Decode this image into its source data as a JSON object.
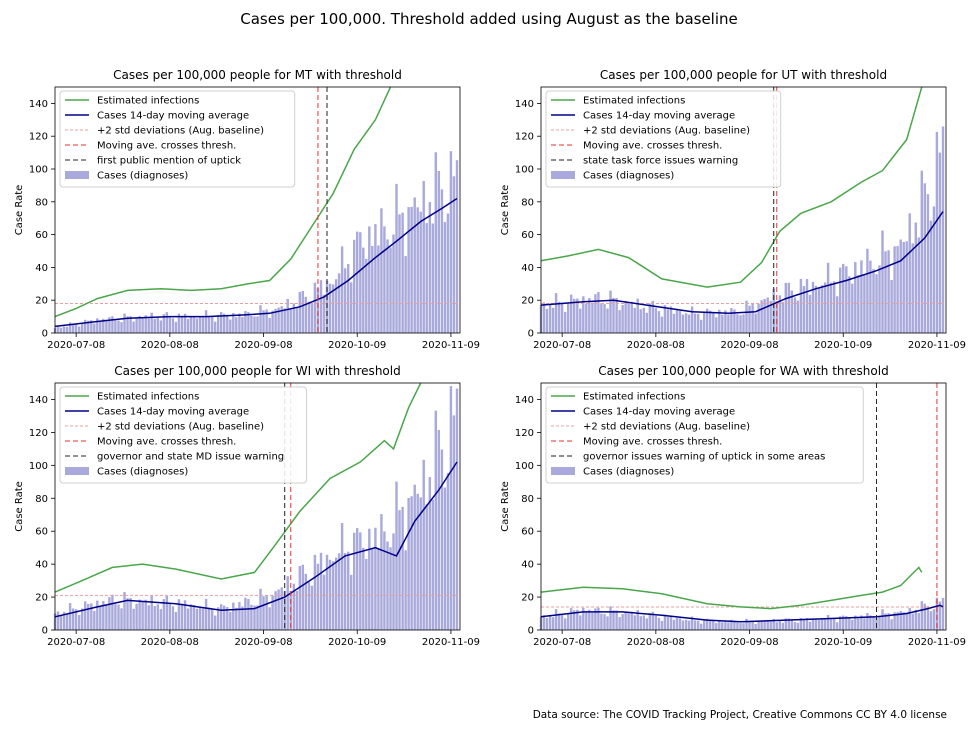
{
  "suptitle": "Cases per 100,000. Threshold added using August as the baseline",
  "source": "Data source: The COVID Tracking Project, Creative Commons CC BY 4.0 license",
  "colors": {
    "infections": "#4aa64a",
    "moving_avg": "#00008b",
    "threshold": "#e8a0a0",
    "crossing": "#e8312f",
    "event": "#222222",
    "bars": "#a9a9dc"
  },
  "chart_data": [
    {
      "type": "bar",
      "state": "MT",
      "title": "Cases per 100,000 people for MT with threshold",
      "ylabel": "Case Rate",
      "xlabel": "",
      "ylim": [
        0,
        150
      ],
      "yticks": [
        0,
        20,
        40,
        60,
        80,
        100,
        120,
        140
      ],
      "xlim": [
        "2020-07-01",
        "2020-11-12"
      ],
      "xticks": [
        "2020-07-08",
        "2020-08-08",
        "2020-09-08",
        "2020-10-09",
        "2020-11-09"
      ],
      "legend_position": "upper-left",
      "legend": [
        "Estimated infections",
        "Cases 14-day moving average",
        "+2 std deviations (Aug. baseline)",
        "Moving ave. crosses thresh.",
        "first public mention of uptick",
        "Cases (diagnoses)"
      ],
      "threshold": 18,
      "crossing_date": "2020-09-26",
      "event_date": "2020-09-29",
      "infections": [
        {
          "date": "2020-07-01",
          "value": 10
        },
        {
          "date": "2020-07-08",
          "value": 15
        },
        {
          "date": "2020-07-15",
          "value": 21
        },
        {
          "date": "2020-07-25",
          "value": 26
        },
        {
          "date": "2020-08-05",
          "value": 27
        },
        {
          "date": "2020-08-15",
          "value": 26
        },
        {
          "date": "2020-08-25",
          "value": 27
        },
        {
          "date": "2020-09-03",
          "value": 30
        },
        {
          "date": "2020-09-10",
          "value": 32
        },
        {
          "date": "2020-09-17",
          "value": 45
        },
        {
          "date": "2020-09-24",
          "value": 65
        },
        {
          "date": "2020-10-01",
          "value": 85
        },
        {
          "date": "2020-10-08",
          "value": 112
        },
        {
          "date": "2020-10-15",
          "value": 130
        },
        {
          "date": "2020-10-20",
          "value": 150
        }
      ],
      "moving_avg": [
        {
          "date": "2020-07-01",
          "value": 4
        },
        {
          "date": "2020-07-15",
          "value": 7
        },
        {
          "date": "2020-07-25",
          "value": 9
        },
        {
          "date": "2020-08-08",
          "value": 10
        },
        {
          "date": "2020-08-20",
          "value": 10
        },
        {
          "date": "2020-09-01",
          "value": 11
        },
        {
          "date": "2020-09-10",
          "value": 12
        },
        {
          "date": "2020-09-20",
          "value": 16
        },
        {
          "date": "2020-09-28",
          "value": 22
        },
        {
          "date": "2020-10-06",
          "value": 32
        },
        {
          "date": "2020-10-15",
          "value": 46
        },
        {
          "date": "2020-10-22",
          "value": 56
        },
        {
          "date": "2020-10-30",
          "value": 68
        },
        {
          "date": "2020-11-06",
          "value": 76
        },
        {
          "date": "2020-11-11",
          "value": 82
        }
      ],
      "cases": [
        {
          "date": "2020-07-01",
          "value": 3
        },
        {
          "date": "2020-07-15",
          "value": 8
        },
        {
          "date": "2020-08-01",
          "value": 10
        },
        {
          "date": "2020-08-15",
          "value": 10
        },
        {
          "date": "2020-09-01",
          "value": 11
        },
        {
          "date": "2020-09-12",
          "value": 14
        },
        {
          "date": "2020-09-22",
          "value": 22
        },
        {
          "date": "2020-10-01",
          "value": 32
        },
        {
          "date": "2020-10-10",
          "value": 55
        },
        {
          "date": "2020-10-20",
          "value": 65
        },
        {
          "date": "2020-10-30",
          "value": 78
        },
        {
          "date": "2020-11-06",
          "value": 88
        },
        {
          "date": "2020-11-11",
          "value": 92
        }
      ]
    },
    {
      "type": "bar",
      "state": "UT",
      "title": "Cases per 100,000 people for UT with threshold",
      "ylabel": "Case Rate",
      "xlabel": "",
      "ylim": [
        0,
        150
      ],
      "yticks": [
        0,
        20,
        40,
        60,
        80,
        100,
        120,
        140
      ],
      "xlim": [
        "2020-07-01",
        "2020-11-12"
      ],
      "xticks": [
        "2020-07-08",
        "2020-08-08",
        "2020-09-08",
        "2020-10-09",
        "2020-11-09"
      ],
      "legend_position": "upper-left",
      "legend": [
        "Estimated infections",
        "Cases 14-day moving average",
        "+2 std deviations (Aug. baseline)",
        "Moving ave. crosses thresh.",
        "state task force issues warning",
        "Cases (diagnoses)"
      ],
      "threshold": 18,
      "crossing_date": "2020-09-17",
      "event_date": "2020-09-16",
      "infections": [
        {
          "date": "2020-07-01",
          "value": 44
        },
        {
          "date": "2020-07-10",
          "value": 47
        },
        {
          "date": "2020-07-20",
          "value": 51
        },
        {
          "date": "2020-07-30",
          "value": 46
        },
        {
          "date": "2020-08-10",
          "value": 33
        },
        {
          "date": "2020-08-25",
          "value": 28
        },
        {
          "date": "2020-09-05",
          "value": 31
        },
        {
          "date": "2020-09-12",
          "value": 43
        },
        {
          "date": "2020-09-18",
          "value": 62
        },
        {
          "date": "2020-09-25",
          "value": 73
        },
        {
          "date": "2020-10-05",
          "value": 80
        },
        {
          "date": "2020-10-15",
          "value": 92
        },
        {
          "date": "2020-10-22",
          "value": 99
        },
        {
          "date": "2020-10-30",
          "value": 118
        },
        {
          "date": "2020-11-04",
          "value": 150
        }
      ],
      "moving_avg": [
        {
          "date": "2020-07-01",
          "value": 17
        },
        {
          "date": "2020-07-15",
          "value": 19
        },
        {
          "date": "2020-07-25",
          "value": 20
        },
        {
          "date": "2020-08-05",
          "value": 17
        },
        {
          "date": "2020-08-20",
          "value": 13
        },
        {
          "date": "2020-09-01",
          "value": 12
        },
        {
          "date": "2020-09-10",
          "value": 13
        },
        {
          "date": "2020-09-20",
          "value": 21
        },
        {
          "date": "2020-09-30",
          "value": 27
        },
        {
          "date": "2020-10-10",
          "value": 32
        },
        {
          "date": "2020-10-20",
          "value": 38
        },
        {
          "date": "2020-10-28",
          "value": 44
        },
        {
          "date": "2020-11-05",
          "value": 58
        },
        {
          "date": "2020-11-11",
          "value": 74
        }
      ],
      "cases": [
        {
          "date": "2020-07-01",
          "value": 17
        },
        {
          "date": "2020-07-20",
          "value": 21
        },
        {
          "date": "2020-08-05",
          "value": 16
        },
        {
          "date": "2020-08-20",
          "value": 12
        },
        {
          "date": "2020-09-05",
          "value": 13
        },
        {
          "date": "2020-09-18",
          "value": 24
        },
        {
          "date": "2020-10-01",
          "value": 30
        },
        {
          "date": "2020-10-15",
          "value": 40
        },
        {
          "date": "2020-10-28",
          "value": 52
        },
        {
          "date": "2020-11-05",
          "value": 80
        },
        {
          "date": "2020-11-11",
          "value": 110
        }
      ]
    },
    {
      "type": "bar",
      "state": "WI",
      "title": "Cases per 100,000 people for WI with threshold",
      "ylabel": "Case Rate",
      "xlabel": "",
      "ylim": [
        0,
        150
      ],
      "yticks": [
        0,
        20,
        40,
        60,
        80,
        100,
        120,
        140
      ],
      "xlim": [
        "2020-07-01",
        "2020-11-12"
      ],
      "xticks": [
        "2020-07-08",
        "2020-08-08",
        "2020-09-08",
        "2020-10-09",
        "2020-11-09"
      ],
      "legend_position": "upper-left",
      "legend": [
        "Estimated infections",
        "Cases 14-day moving average",
        "+2 std deviations (Aug. baseline)",
        "Moving ave. crosses thresh.",
        "governor and state MD issue warning",
        "Cases (diagnoses)"
      ],
      "threshold": 21,
      "crossing_date": "2020-09-17",
      "event_date": "2020-09-15",
      "infections": [
        {
          "date": "2020-07-01",
          "value": 23
        },
        {
          "date": "2020-07-10",
          "value": 30
        },
        {
          "date": "2020-07-20",
          "value": 38
        },
        {
          "date": "2020-07-30",
          "value": 40
        },
        {
          "date": "2020-08-10",
          "value": 37
        },
        {
          "date": "2020-08-25",
          "value": 31
        },
        {
          "date": "2020-09-05",
          "value": 35
        },
        {
          "date": "2020-09-12",
          "value": 52
        },
        {
          "date": "2020-09-20",
          "value": 72
        },
        {
          "date": "2020-09-30",
          "value": 92
        },
        {
          "date": "2020-10-10",
          "value": 102
        },
        {
          "date": "2020-10-18",
          "value": 115
        },
        {
          "date": "2020-10-21",
          "value": 110
        },
        {
          "date": "2020-10-26",
          "value": 135
        },
        {
          "date": "2020-10-30",
          "value": 150
        }
      ],
      "moving_avg": [
        {
          "date": "2020-07-01",
          "value": 8
        },
        {
          "date": "2020-07-15",
          "value": 14
        },
        {
          "date": "2020-07-25",
          "value": 18
        },
        {
          "date": "2020-08-10",
          "value": 16
        },
        {
          "date": "2020-08-25",
          "value": 12
        },
        {
          "date": "2020-09-05",
          "value": 13
        },
        {
          "date": "2020-09-15",
          "value": 20
        },
        {
          "date": "2020-09-25",
          "value": 32
        },
        {
          "date": "2020-10-05",
          "value": 45
        },
        {
          "date": "2020-10-15",
          "value": 50
        },
        {
          "date": "2020-10-22",
          "value": 45
        },
        {
          "date": "2020-10-28",
          "value": 66
        },
        {
          "date": "2020-11-05",
          "value": 85
        },
        {
          "date": "2020-11-11",
          "value": 102
        }
      ],
      "cases": [
        {
          "date": "2020-07-01",
          "value": 10
        },
        {
          "date": "2020-07-20",
          "value": 18
        },
        {
          "date": "2020-08-10",
          "value": 16
        },
        {
          "date": "2020-08-25",
          "value": 13
        },
        {
          "date": "2020-09-10",
          "value": 20
        },
        {
          "date": "2020-09-22",
          "value": 34
        },
        {
          "date": "2020-10-05",
          "value": 50
        },
        {
          "date": "2020-10-18",
          "value": 58
        },
        {
          "date": "2020-10-30",
          "value": 85
        },
        {
          "date": "2020-11-11",
          "value": 128
        }
      ]
    },
    {
      "type": "bar",
      "state": "WA",
      "title": "Cases per 100,000 people for WA with threshold",
      "ylabel": "Case Rate",
      "xlabel": "",
      "ylim": [
        0,
        150
      ],
      "yticks": [
        0,
        20,
        40,
        60,
        80,
        100,
        120,
        140
      ],
      "xlim": [
        "2020-07-01",
        "2020-11-12"
      ],
      "xticks": [
        "2020-07-08",
        "2020-08-08",
        "2020-09-08",
        "2020-10-09",
        "2020-11-09"
      ],
      "legend_position": "upper-left",
      "legend": [
        "Estimated infections",
        "Cases 14-day moving average",
        "+2 std deviations (Aug. baseline)",
        "Moving ave. crosses thresh.",
        "governor issues warning of uptick in some areas",
        "Cases (diagnoses)"
      ],
      "threshold": 14,
      "crossing_date": "2020-11-09",
      "event_date": "2020-10-20",
      "infections": [
        {
          "date": "2020-07-01",
          "value": 23
        },
        {
          "date": "2020-07-15",
          "value": 26
        },
        {
          "date": "2020-07-28",
          "value": 25
        },
        {
          "date": "2020-08-10",
          "value": 22
        },
        {
          "date": "2020-08-25",
          "value": 16
        },
        {
          "date": "2020-09-05",
          "value": 14
        },
        {
          "date": "2020-09-15",
          "value": 13
        },
        {
          "date": "2020-09-25",
          "value": 15
        },
        {
          "date": "2020-10-05",
          "value": 18
        },
        {
          "date": "2020-10-15",
          "value": 21
        },
        {
          "date": "2020-10-22",
          "value": 23
        },
        {
          "date": "2020-10-28",
          "value": 27
        },
        {
          "date": "2020-11-03",
          "value": 38
        },
        {
          "date": "2020-11-04",
          "value": 35
        }
      ],
      "moving_avg": [
        {
          "date": "2020-07-01",
          "value": 8
        },
        {
          "date": "2020-07-15",
          "value": 11
        },
        {
          "date": "2020-07-28",
          "value": 11
        },
        {
          "date": "2020-08-10",
          "value": 9
        },
        {
          "date": "2020-08-25",
          "value": 6
        },
        {
          "date": "2020-09-05",
          "value": 5
        },
        {
          "date": "2020-09-20",
          "value": 6
        },
        {
          "date": "2020-10-05",
          "value": 7
        },
        {
          "date": "2020-10-20",
          "value": 8
        },
        {
          "date": "2020-10-30",
          "value": 10
        },
        {
          "date": "2020-11-06",
          "value": 13
        },
        {
          "date": "2020-11-10",
          "value": 15
        },
        {
          "date": "2020-11-11",
          "value": 14
        }
      ],
      "cases": [
        {
          "date": "2020-07-01",
          "value": 8
        },
        {
          "date": "2020-07-15",
          "value": 12
        },
        {
          "date": "2020-08-01",
          "value": 10
        },
        {
          "date": "2020-08-20",
          "value": 6
        },
        {
          "date": "2020-09-05",
          "value": 5
        },
        {
          "date": "2020-09-25",
          "value": 6
        },
        {
          "date": "2020-10-15",
          "value": 8
        },
        {
          "date": "2020-10-30",
          "value": 11
        },
        {
          "date": "2020-11-11",
          "value": 17
        }
      ]
    }
  ]
}
